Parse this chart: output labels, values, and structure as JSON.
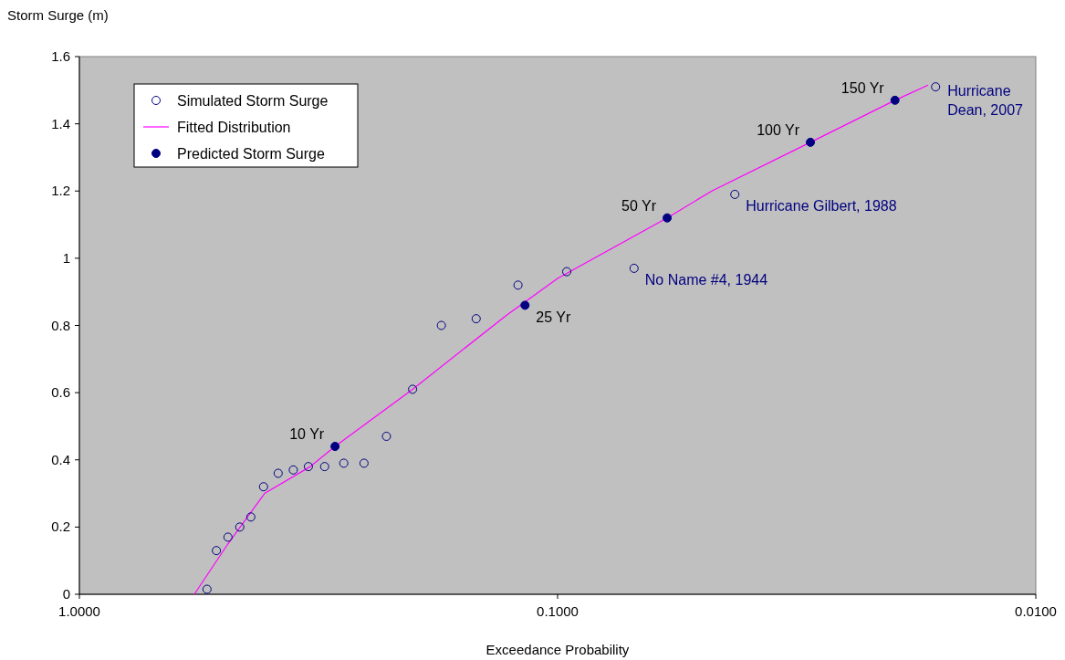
{
  "chart_data": {
    "type": "scatter",
    "xlabel": "Exceedance Probability",
    "ylabel": "Storm Surge (m)",
    "log": "x",
    "xlim": [
      1,
      0.01
    ],
    "xticks": [
      {
        "value": 1,
        "label": "1.0000"
      },
      {
        "value": 0.1,
        "label": "0.1000"
      },
      {
        "value": 0.01,
        "label": "0.0100"
      }
    ],
    "ylim": [
      0,
      1.6
    ],
    "yticks": [
      0,
      0.2,
      0.4,
      0.6,
      0.8,
      1,
      1.2,
      1.4,
      1.6
    ],
    "grid": false,
    "legend": "top left",
    "series": [
      {
        "name": "Simulated Storm Surge",
        "marker": "circle",
        "color": "#000080",
        "x": [
          0.541,
          0.517,
          0.489,
          0.462,
          0.438,
          0.412,
          0.384,
          0.357,
          0.332,
          0.307,
          0.28,
          0.254,
          0.228,
          0.201,
          0.175,
          0.148,
          0.121,
          0.0957,
          0.0692,
          0.0426,
          0.0162
        ],
        "values": [
          0.015,
          0.13,
          0.17,
          0.2,
          0.23,
          0.32,
          0.36,
          0.37,
          0.38,
          0.38,
          0.39,
          0.39,
          0.47,
          0.61,
          0.8,
          0.82,
          0.92,
          0.96,
          0.97,
          1.19,
          1.51
        ]
      },
      {
        "name": "Fitted Distribution",
        "type": "line",
        "marker": "none",
        "color": "#ff00ff",
        "x": [
          0.575,
          0.489,
          0.41,
          0.329,
          0.292,
          0.201,
          0.128,
          0.1,
          0.059,
          0.0476,
          0.0296,
          0.0197,
          0.0168
        ],
        "values": [
          0,
          0.15,
          0.3,
          0.38,
          0.44,
          0.61,
          0.83,
          0.94,
          1.12,
          1.2,
          1.345,
          1.47,
          1.515
        ]
      },
      {
        "name": "Predicted Storm Surge",
        "marker": "circle",
        "color": "#000080",
        "x": [
          0.292,
          0.117,
          0.059,
          0.0296,
          0.0197
        ],
        "values": [
          0.44,
          0.86,
          1.12,
          1.345,
          1.47
        ]
      }
    ],
    "annotations": [
      {
        "text": "10 Yr",
        "x": 0.292,
        "y": 0.44
      },
      {
        "text": "25 Yr",
        "x": 0.117,
        "y": 0.86
      },
      {
        "text": "50 Yr",
        "x": 0.059,
        "y": 1.12
      },
      {
        "text": "100 Yr",
        "x": 0.0296,
        "y": 1.345
      },
      {
        "text": "150 Yr",
        "x": 0.0197,
        "y": 1.47
      },
      {
        "text": "No Name #4, 1944",
        "x": 0.0692,
        "y": 0.97
      },
      {
        "text": "Hurricane Gilbert, 1988",
        "x": 0.0426,
        "y": 1.19
      },
      {
        "text": "Hurricane Dean, 2007",
        "x": 0.0162,
        "y": 1.51
      }
    ]
  }
}
